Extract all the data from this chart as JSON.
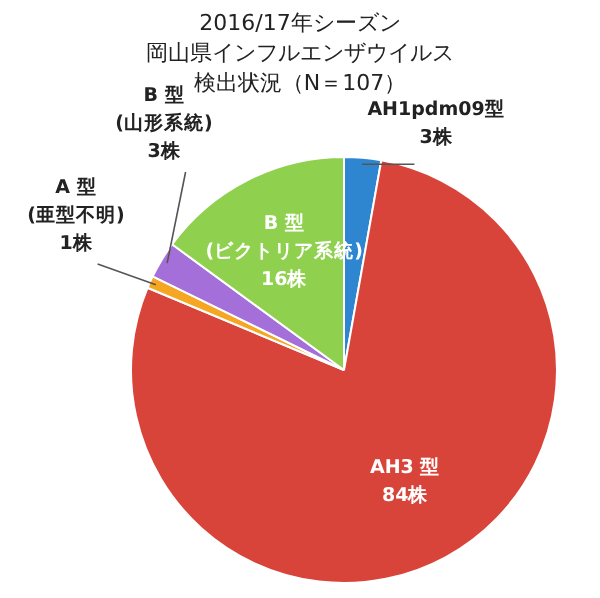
{
  "chart_data": {
    "type": "pie",
    "title": "2016/17年シーズン",
    "subtitle": "岡山県インフルエンザウイルス",
    "annotations": [
      "検出状況（N＝107）"
    ],
    "categories": [
      "AH1pdm09型",
      "AH3 型",
      "A 型\n(亜型不明)",
      "B 型\n(山形系統)",
      "B 型\n(ビクトリア系統)"
    ],
    "values": [
      3,
      84,
      1,
      3,
      16
    ],
    "value_labels": [
      "3株",
      "84株",
      "1株",
      "3株",
      "16株"
    ],
    "colors": [
      "#2e86d0",
      "#d9443a",
      "#f5a623",
      "#a46fd8",
      "#8fd14f"
    ],
    "legend": false
  }
}
